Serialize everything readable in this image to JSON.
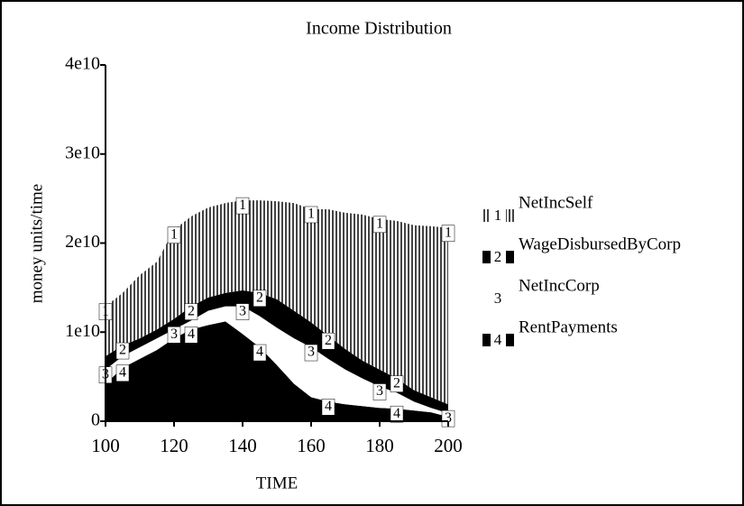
{
  "chart_data": {
    "type": "stacked-area",
    "title": "Income Distribution",
    "x_label": "TIME",
    "y_label": "money units/time",
    "x": [
      100,
      105,
      110,
      115,
      120,
      125,
      130,
      135,
      140,
      145,
      150,
      155,
      160,
      165,
      170,
      175,
      180,
      185,
      190,
      195,
      200
    ],
    "xlim": [
      100,
      200
    ],
    "xticks": [
      100,
      120,
      140,
      160,
      180,
      200
    ],
    "ylim": [
      0,
      40000000000
    ],
    "yticks": [
      0,
      {
        "value": 10000000000,
        "label": "1e10"
      },
      {
        "value": 20000000000,
        "label": "2e10"
      },
      {
        "value": 30000000000,
        "label": "3e10"
      },
      {
        "value": 40000000000,
        "label": "4e10"
      }
    ],
    "series": [
      {
        "name": "NetIncSelf",
        "marker": "1",
        "color": "#444444",
        "hatch": true,
        "values": [
          5600000000.0,
          5900000000.0,
          7100000000.0,
          7600000000.0,
          10000000000.0,
          10100000000.0,
          10100000000.0,
          10100000000.0,
          10100000000.0,
          10400000000.0,
          11000000000.0,
          12100000000.0,
          12700000000.0,
          14200000000.0,
          15300000000.0,
          16400000000.0,
          16900000000.0,
          17700000000.0,
          18500000000.0,
          19200000000.0,
          19800000000.0
        ]
      },
      {
        "name": "WageDisbursedByCorp",
        "marker": "2",
        "color": "#000000",
        "hatch": false,
        "values": [
          1500000000.0,
          1200000000.0,
          1000000000.0,
          1000000000.0,
          1200000000.0,
          1600000000.0,
          1500000000.0,
          1500000000.0,
          1800000000.0,
          2600000000.0,
          3200000000.0,
          3100000000.0,
          2800000000.0,
          2600000000.0,
          2300000000.0,
          2000000000.0,
          1900000000.0,
          1600000000.0,
          1300000000.0,
          1200000000.0,
          1000000000.0
        ]
      },
      {
        "name": "NetIncCorp",
        "marker": "3",
        "color": "#ffffff",
        "hatch": false,
        "values": [
          1600000000.0,
          1300000000.0,
          1300000000.0,
          1300000000.0,
          1000000000.0,
          1000000000.0,
          1600000000.0,
          1700000000.0,
          3100000000.0,
          3500000000.0,
          4200000000.0,
          5100000000.0,
          5600000000.0,
          4800000000.0,
          3900000000.0,
          3100000000.0,
          2400000000.0,
          1800000000.0,
          1000000000.0,
          500000000.0,
          400000000.0
        ]
      },
      {
        "name": "RentPayments",
        "marker": "4",
        "color": "#000000",
        "hatch": false,
        "values": [
          4200000000.0,
          6000000000.0,
          7000000000.0,
          8000000000.0,
          9300000000.0,
          10300000000.0,
          10800000000.0,
          11200000000.0,
          9800000000.0,
          8300000000.0,
          6300000000.0,
          4200000000.0,
          2700000000.0,
          2200000000.0,
          1900000000.0,
          1700000000.0,
          1500000000.0,
          1400000000.0,
          1200000000.0,
          1000000000.0,
          500000000.0
        ]
      }
    ]
  }
}
